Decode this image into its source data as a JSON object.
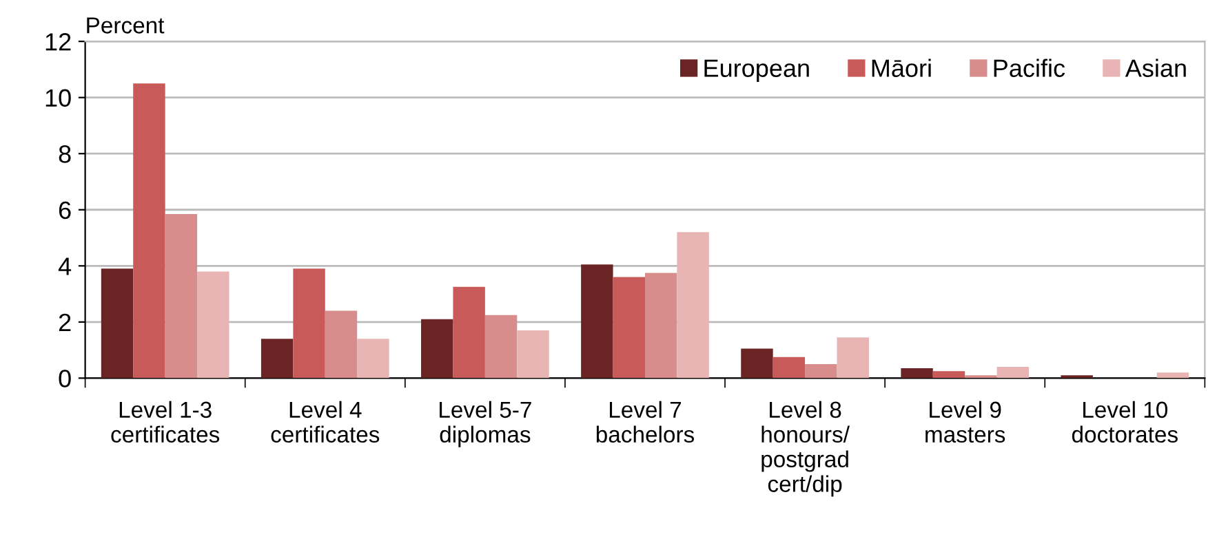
{
  "chart_data": {
    "type": "bar",
    "ylabel": "Percent",
    "categories": [
      "Level 1-3\ncertificates",
      "Level 4\ncertificates",
      "Level 5-7\ndiplomas",
      "Level 7\nbachelors",
      "Level 8\nhonours/\npostgrad\ncert/dip",
      "Level 9\nmasters",
      "Level 10\ndoctorates"
    ],
    "series": [
      {
        "name": "European",
        "color": "#6b2424",
        "values": [
          3.9,
          1.4,
          2.1,
          4.05,
          1.05,
          0.35,
          0.1
        ]
      },
      {
        "name": "Māori",
        "color": "#c85a5a",
        "values": [
          10.5,
          3.9,
          3.25,
          3.6,
          0.75,
          0.25,
          0
        ]
      },
      {
        "name": "Pacific",
        "color": "#d98c8c",
        "values": [
          5.85,
          2.4,
          2.25,
          3.75,
          0.5,
          0.1,
          0
        ]
      },
      {
        "name": "Asian",
        "color": "#e8b4b4",
        "values": [
          3.8,
          1.4,
          1.7,
          5.2,
          1.45,
          0.4,
          0.2
        ]
      }
    ],
    "ylim": [
      0,
      12
    ],
    "yticks": [
      0,
      2,
      4,
      6,
      8,
      10,
      12
    ],
    "grid": "y",
    "legend": "top right"
  }
}
